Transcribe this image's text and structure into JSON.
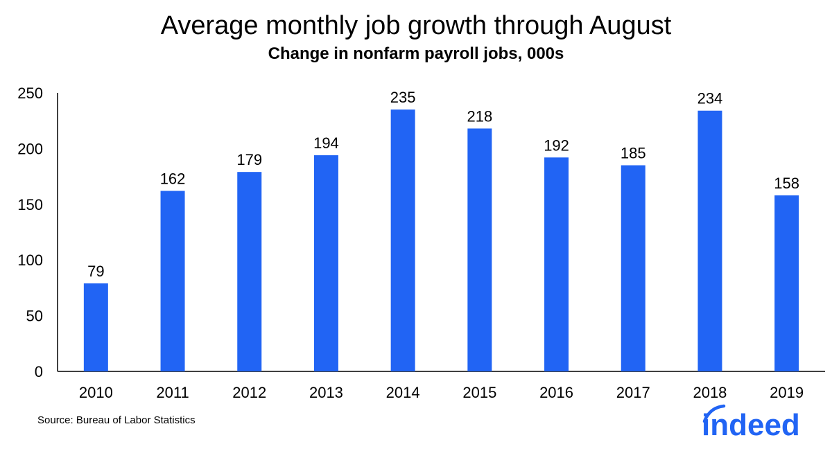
{
  "chart_data": {
    "type": "bar",
    "title": "Average monthly job growth through August",
    "subtitle": "Change in nonfarm payroll jobs, 000s",
    "categories": [
      "2010",
      "2011",
      "2012",
      "2013",
      "2014",
      "2015",
      "2016",
      "2017",
      "2018",
      "2019"
    ],
    "values": [
      79,
      162,
      179,
      194,
      235,
      218,
      192,
      185,
      234,
      158
    ],
    "ylim": [
      0,
      250
    ],
    "yticks": [
      0,
      50,
      100,
      150,
      200,
      250
    ],
    "xlabel": "",
    "ylabel": "",
    "grid": false,
    "legend": "none",
    "bar_color": "#2164F4",
    "data_labels": true
  },
  "source": "Source: Bureau of Labor Statistics",
  "logo": {
    "text": "indeed",
    "color": "#2164F4"
  }
}
